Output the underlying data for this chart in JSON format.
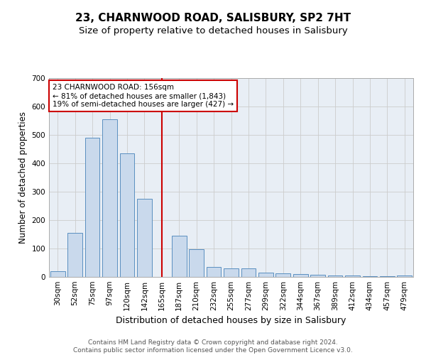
{
  "title1": "23, CHARNWOOD ROAD, SALISBURY, SP2 7HT",
  "title2": "Size of property relative to detached houses in Salisbury",
  "xlabel": "Distribution of detached houses by size in Salisbury",
  "ylabel": "Number of detached properties",
  "categories": [
    "30sqm",
    "52sqm",
    "75sqm",
    "97sqm",
    "120sqm",
    "142sqm",
    "165sqm",
    "187sqm",
    "210sqm",
    "232sqm",
    "255sqm",
    "277sqm",
    "299sqm",
    "322sqm",
    "344sqm",
    "367sqm",
    "389sqm",
    "412sqm",
    "434sqm",
    "457sqm",
    "479sqm"
  ],
  "values": [
    20,
    155,
    490,
    555,
    435,
    275,
    0,
    145,
    97,
    35,
    30,
    30,
    14,
    13,
    10,
    7,
    5,
    4,
    3,
    2,
    5
  ],
  "bar_color": "#c9d9ec",
  "bar_edge_color": "#5a8fc0",
  "marker_line_x": "165sqm",
  "annotation_text": "23 CHARNWOOD ROAD: 156sqm\n← 81% of detached houses are smaller (1,843)\n19% of semi-detached houses are larger (427) →",
  "annotation_box_color": "#ffffff",
  "annotation_box_edge": "#cc0000",
  "vline_color": "#cc0000",
  "ylim": [
    0,
    700
  ],
  "yticks": [
    0,
    100,
    200,
    300,
    400,
    500,
    600,
    700
  ],
  "grid_color": "#cccccc",
  "bg_color": "#e8eef5",
  "footer_text": "Contains HM Land Registry data © Crown copyright and database right 2024.\nContains public sector information licensed under the Open Government Licence v3.0.",
  "title1_fontsize": 11,
  "title2_fontsize": 9.5,
  "xlabel_fontsize": 9,
  "ylabel_fontsize": 8.5,
  "tick_fontsize": 7.5,
  "annotation_fontsize": 7.5,
  "footer_fontsize": 6.5
}
